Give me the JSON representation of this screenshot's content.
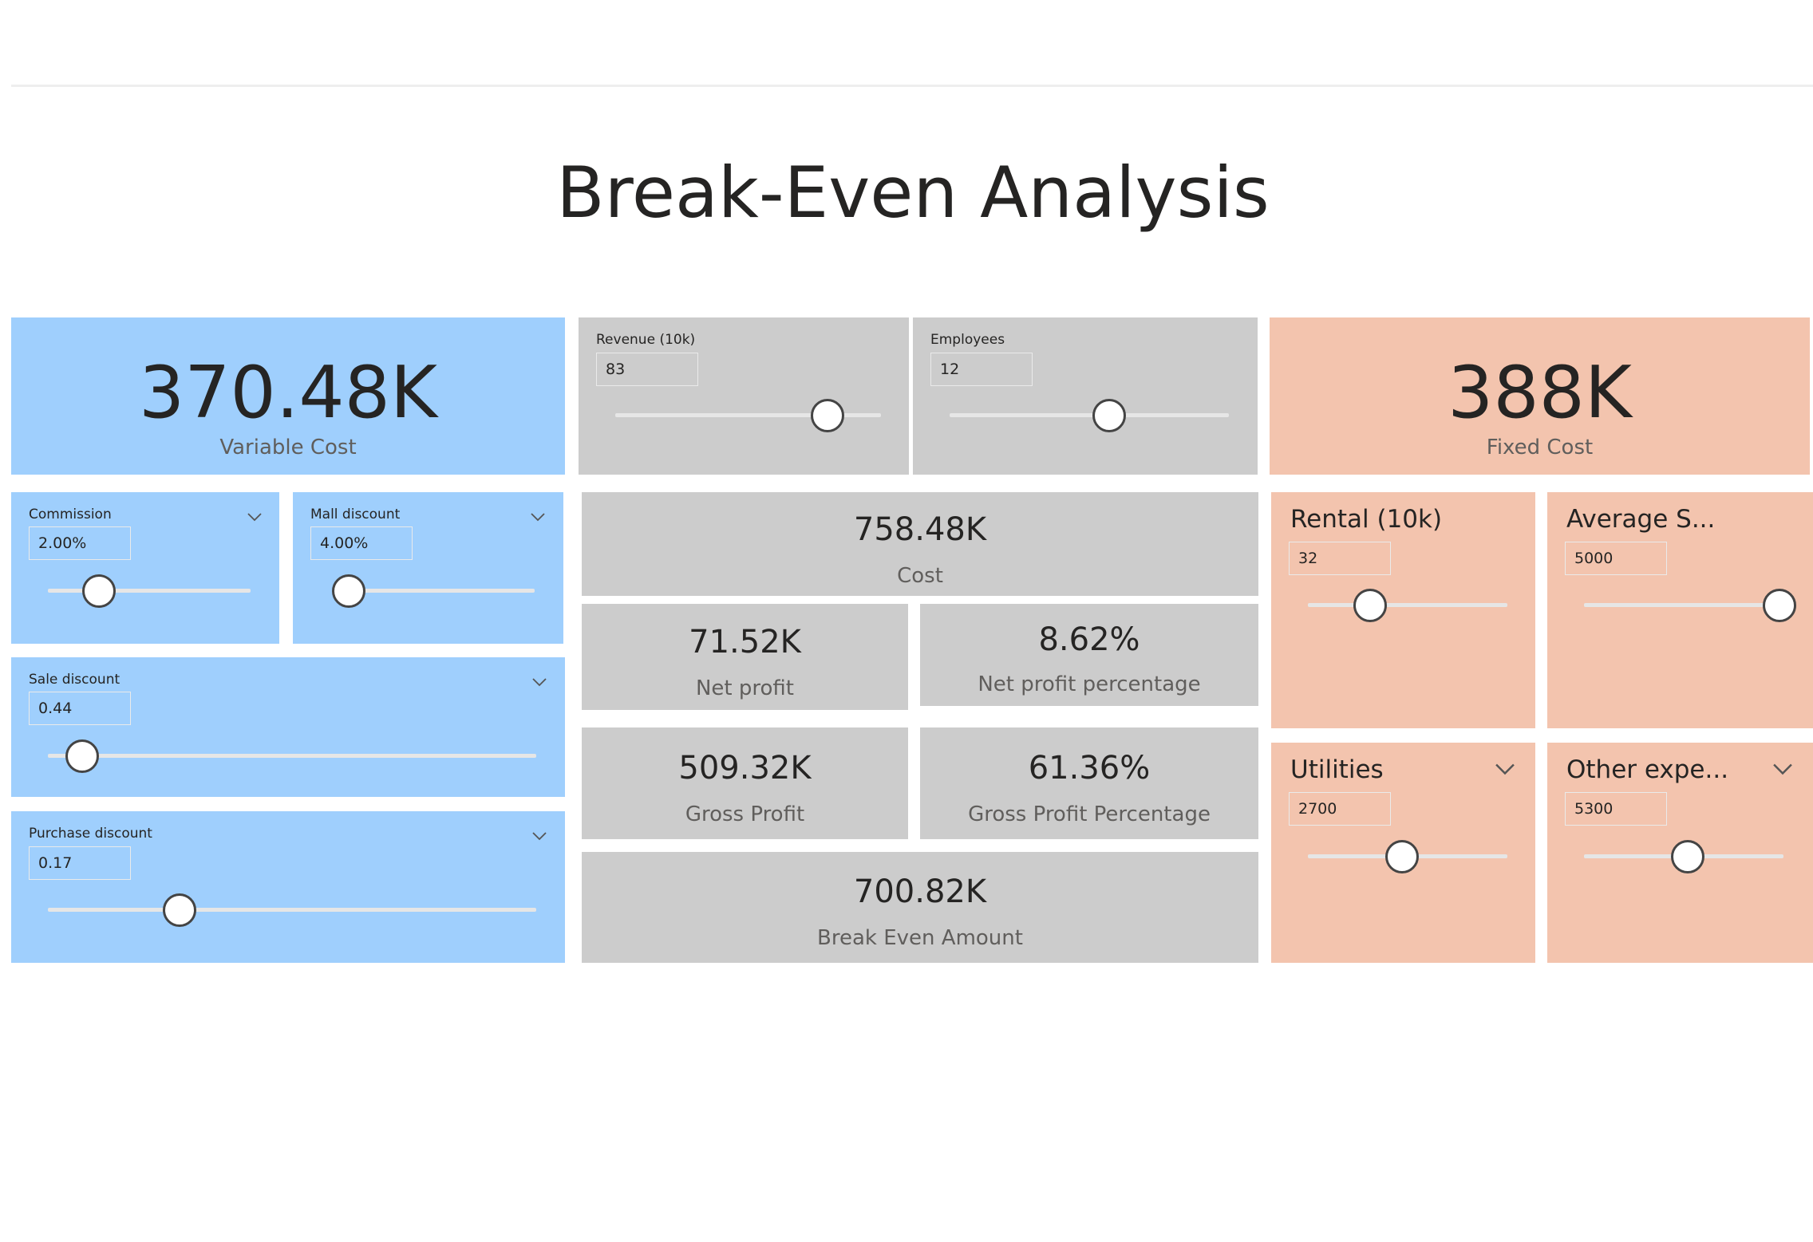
{
  "page": {
    "title": "Break-Even Analysis"
  },
  "variable_cost": {
    "value": "370.48K",
    "label": "Variable Cost"
  },
  "fixed_cost": {
    "value": "388K",
    "label": "Fixed Cost"
  },
  "sliders": {
    "revenue": {
      "label": "Revenue (10k)",
      "value": "83",
      "position": 0.8
    },
    "employees": {
      "label": "Employees",
      "value": "12",
      "position": 0.57
    },
    "commission": {
      "label": "Commission",
      "value": "2.00%",
      "position": 0.25
    },
    "mall_discount": {
      "label": "Mall discount",
      "value": "4.00%",
      "position": 0.0
    },
    "sale_discount": {
      "label": "Sale discount",
      "value": "0.44",
      "position": 0.07
    },
    "purchase_discount": {
      "label": "Purchase discount",
      "value": "0.17",
      "position": 0.27
    },
    "rental": {
      "label": "Rental (10k)",
      "value": "32",
      "position": 0.31
    },
    "average_s": {
      "label": "Average S...",
      "value": "5000",
      "position": 1.0
    },
    "utilities": {
      "label": "Utilities",
      "value": "2700",
      "position": 0.47
    },
    "other_expe": {
      "label": "Other expe...",
      "value": "5300",
      "position": 0.52
    }
  },
  "metrics": {
    "cost": {
      "value": "758.48K",
      "label": "Cost"
    },
    "net_profit": {
      "value": "71.52K",
      "label": "Net profit"
    },
    "net_profit_pct": {
      "value": "8.62%",
      "label": "Net profit percentage"
    },
    "gross_profit": {
      "value": "509.32K",
      "label": "Gross Profit"
    },
    "gross_profit_pct": {
      "value": "61.36%",
      "label": "Gross Profit Percentage"
    },
    "break_even": {
      "value": "700.82K",
      "label": "Break Even Amount"
    }
  },
  "colors": {
    "blue": "#9fcffd",
    "grey": "#cccccc",
    "peach": "#f3c4ae"
  }
}
